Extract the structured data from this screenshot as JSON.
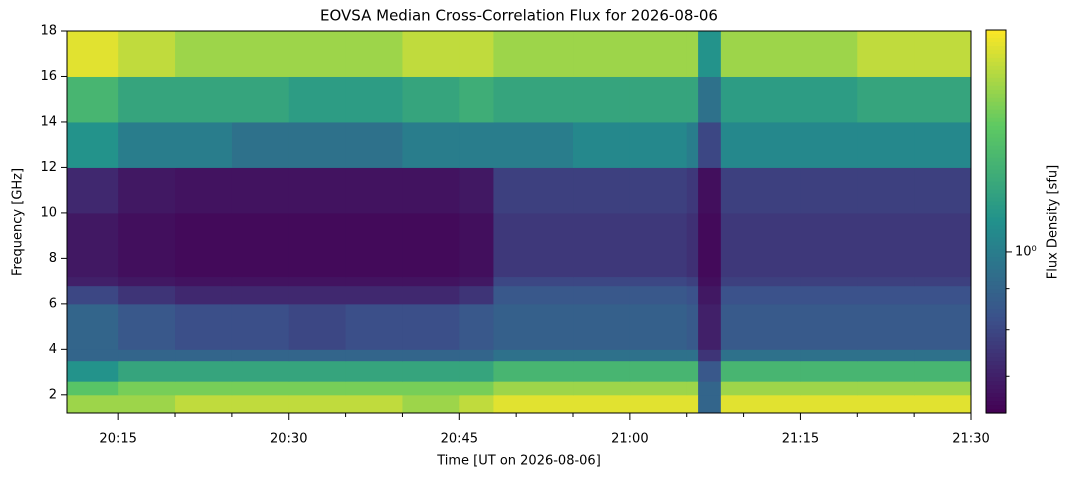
{
  "chart_data": {
    "type": "heatmap",
    "title": "EOVSA Median Cross-Correlation Flux for 2026-08-06",
    "x_label": "Time [UT on 2026-08-06]",
    "y_label": "Frequency [GHz]",
    "colormap": "viridis",
    "log_color_scale": true,
    "xlim": [
      "20:10:30",
      "21:30"
    ],
    "xticks": [
      "20:15",
      "20:30",
      "20:45",
      "21:00",
      "21:15",
      "21:30"
    ],
    "xminorticks": [
      "20:20",
      "20:25",
      "20:35",
      "20:40",
      "20:50",
      "20:55",
      "21:05",
      "21:10",
      "21:20",
      "21:25"
    ],
    "ylim": [
      1.2,
      18
    ],
    "yticks": [
      2,
      4,
      6,
      8,
      10,
      12,
      14,
      16,
      18
    ],
    "x_edges": [
      "20:10:30",
      "20:15",
      "20:20",
      "20:25",
      "20:30",
      "20:35",
      "20:40",
      "20:45",
      "20:48",
      "20:55",
      "21:00",
      "21:05",
      "21:06",
      "21:08",
      "21:15",
      "21:20",
      "21:25",
      "21:30"
    ],
    "y_edges": [
      1.2,
      2,
      2.6,
      3.5,
      4,
      6,
      6.8,
      7.2,
      10,
      12,
      14,
      16,
      18
    ],
    "z": [
      [
        1.6,
        1.6,
        1.7,
        1.7,
        1.7,
        1.7,
        1.6,
        1.7,
        1.8,
        1.8,
        1.8,
        1.8,
        0.9,
        1.8,
        1.8,
        1.8,
        1.8
      ],
      [
        1.4,
        1.5,
        1.5,
        1.5,
        1.5,
        1.5,
        1.5,
        1.5,
        1.6,
        1.6,
        1.6,
        1.6,
        0.9,
        1.6,
        1.6,
        1.6,
        1.6
      ],
      [
        1.1,
        1.2,
        1.2,
        1.2,
        1.2,
        1.2,
        1.2,
        1.2,
        1.3,
        1.3,
        1.3,
        1.3,
        0.85,
        1.3,
        1.3,
        1.3,
        1.3
      ],
      [
        0.9,
        0.9,
        0.9,
        0.9,
        0.9,
        0.9,
        0.9,
        0.9,
        0.95,
        0.95,
        0.95,
        0.95,
        0.75,
        0.95,
        0.95,
        0.95,
        0.95
      ],
      [
        0.9,
        0.85,
        0.82,
        0.82,
        0.8,
        0.82,
        0.82,
        0.85,
        0.88,
        0.88,
        0.88,
        0.86,
        0.7,
        0.86,
        0.86,
        0.86,
        0.86
      ],
      [
        0.8,
        0.75,
        0.72,
        0.72,
        0.72,
        0.72,
        0.72,
        0.75,
        0.85,
        0.85,
        0.85,
        0.83,
        0.68,
        0.83,
        0.83,
        0.83,
        0.83
      ],
      [
        0.7,
        0.68,
        0.67,
        0.67,
        0.67,
        0.67,
        0.67,
        0.68,
        0.8,
        0.8,
        0.8,
        0.78,
        0.66,
        0.78,
        0.78,
        0.78,
        0.78
      ],
      [
        0.68,
        0.66,
        0.65,
        0.65,
        0.65,
        0.65,
        0.65,
        0.66,
        0.76,
        0.76,
        0.76,
        0.74,
        0.65,
        0.76,
        0.76,
        0.76,
        0.76
      ],
      [
        0.72,
        0.68,
        0.67,
        0.67,
        0.67,
        0.67,
        0.67,
        0.68,
        0.78,
        0.78,
        0.78,
        0.76,
        0.66,
        0.78,
        0.78,
        0.78,
        0.78
      ],
      [
        1.1,
        1.0,
        1.0,
        0.95,
        0.95,
        0.95,
        1.0,
        1.0,
        1.0,
        1.05,
        1.05,
        1.0,
        0.8,
        1.05,
        1.05,
        1.05,
        1.05
      ],
      [
        1.3,
        1.2,
        1.2,
        1.2,
        1.15,
        1.15,
        1.2,
        1.25,
        1.2,
        1.2,
        1.2,
        1.2,
        0.95,
        1.15,
        1.15,
        1.2,
        1.2
      ],
      [
        1.8,
        1.7,
        1.6,
        1.6,
        1.6,
        1.6,
        1.7,
        1.7,
        1.6,
        1.6,
        1.6,
        1.6,
        1.1,
        1.6,
        1.6,
        1.7,
        1.7
      ]
    ],
    "zlim": [
      0.63,
      1.89
    ],
    "colorbar": {
      "label": "Flux Density [sfu]",
      "ticks": [
        {
          "value": 1,
          "label": "10⁰"
        }
      ],
      "minor_ticks": [
        0.7,
        0.8,
        0.9
      ]
    }
  }
}
